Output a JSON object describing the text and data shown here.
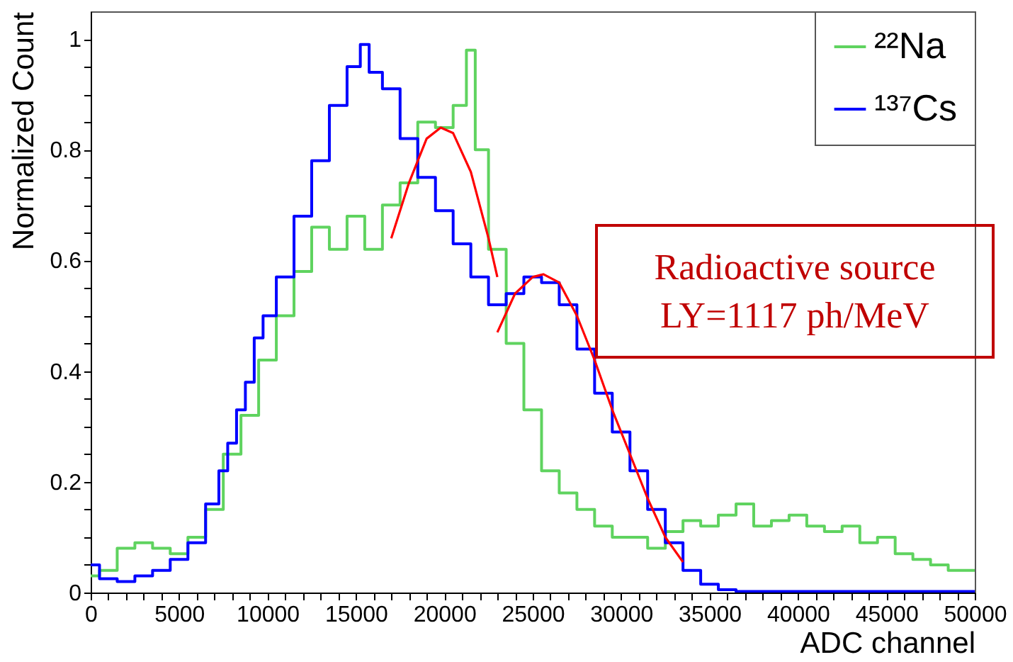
{
  "chart_data": {
    "type": "step",
    "xlabel": "ADC channel",
    "ylabel": "Normalized Count",
    "xlim": [
      0,
      50000
    ],
    "ylim": [
      0,
      1.05
    ],
    "xticks": [
      0,
      {
        "value": 1000,
        "label": null
      },
      {
        "value": 2000,
        "label": null
      },
      {
        "value": 3000,
        "label": null
      },
      {
        "value": 4000,
        "label": null
      },
      5000,
      {
        "value": 6000,
        "label": null
      },
      {
        "value": 7000,
        "label": null
      },
      {
        "value": 8000,
        "label": null
      },
      {
        "value": 9000,
        "label": null
      },
      10000,
      {
        "value": 11000,
        "label": null
      },
      {
        "value": 12000,
        "label": null
      },
      {
        "value": 13000,
        "label": null
      },
      {
        "value": 14000,
        "label": null
      },
      15000,
      {
        "value": 16000,
        "label": null
      },
      {
        "value": 17000,
        "label": null
      },
      {
        "value": 18000,
        "label": null
      },
      {
        "value": 19000,
        "label": null
      },
      20000,
      {
        "value": 21000,
        "label": null
      },
      {
        "value": 22000,
        "label": null
      },
      {
        "value": 23000,
        "label": null
      },
      {
        "value": 24000,
        "label": null
      },
      25000,
      {
        "value": 26000,
        "label": null
      },
      {
        "value": 27000,
        "label": null
      },
      {
        "value": 28000,
        "label": null
      },
      {
        "value": 29000,
        "label": null
      },
      30000,
      {
        "value": 31000,
        "label": null
      },
      {
        "value": 32000,
        "label": null
      },
      {
        "value": 33000,
        "label": null
      },
      {
        "value": 34000,
        "label": null
      },
      35000,
      {
        "value": 36000,
        "label": null
      },
      {
        "value": 37000,
        "label": null
      },
      {
        "value": 38000,
        "label": null
      },
      {
        "value": 39000,
        "label": null
      },
      40000,
      {
        "value": 41000,
        "label": null
      },
      {
        "value": 42000,
        "label": null
      },
      {
        "value": 43000,
        "label": null
      },
      {
        "value": 44000,
        "label": null
      },
      45000,
      {
        "value": 46000,
        "label": null
      },
      {
        "value": 47000,
        "label": null
      },
      {
        "value": 48000,
        "label": null
      },
      {
        "value": 49000,
        "label": null
      },
      50000
    ],
    "yticks": [
      0,
      {
        "value": 0.05,
        "label": null
      },
      {
        "value": 0.1,
        "label": null
      },
      {
        "value": 0.15,
        "label": null
      },
      0.2,
      {
        "value": 0.25,
        "label": null
      },
      {
        "value": 0.3,
        "label": null
      },
      {
        "value": 0.35,
        "label": null
      },
      0.4,
      {
        "value": 0.45,
        "label": null
      },
      {
        "value": 0.5,
        "label": null
      },
      {
        "value": 0.55,
        "label": null
      },
      0.6,
      {
        "value": 0.65,
        "label": null
      },
      {
        "value": 0.7,
        "label": null
      },
      {
        "value": 0.75,
        "label": null
      },
      0.8,
      {
        "value": 0.85,
        "label": null
      },
      {
        "value": 0.9,
        "label": null
      },
      {
        "value": 0.95,
        "label": null
      },
      1
    ],
    "grid": false,
    "legend": "top right",
    "marker": "none",
    "annotations": [
      "Radioactive source",
      "LY=1117 ph/MeV"
    ],
    "series": [
      {
        "name": "²²Na",
        "color": "#5fd35f",
        "x": [
          0,
          1000,
          2000,
          3000,
          4000,
          5000,
          6000,
          7000,
          8000,
          9000,
          10000,
          11000,
          12000,
          13000,
          14000,
          15000,
          16000,
          17000,
          18000,
          19000,
          20000,
          21000,
          21500,
          22000,
          23000,
          24000,
          25000,
          26000,
          27000,
          28000,
          29000,
          30000,
          31000,
          32000,
          33000,
          34000,
          35000,
          36000,
          37000,
          38000,
          39000,
          40000,
          41000,
          42000,
          43000,
          44000,
          45000,
          46000,
          47000,
          48000,
          49000,
          50000
        ],
        "values": [
          0.03,
          0.04,
          0.08,
          0.09,
          0.08,
          0.07,
          0.1,
          0.15,
          0.25,
          0.32,
          0.42,
          0.5,
          0.58,
          0.66,
          0.62,
          0.68,
          0.62,
          0.7,
          0.74,
          0.85,
          0.84,
          0.88,
          0.98,
          0.8,
          0.62,
          0.45,
          0.33,
          0.22,
          0.18,
          0.15,
          0.12,
          0.1,
          0.1,
          0.08,
          0.11,
          0.13,
          0.12,
          0.14,
          0.16,
          0.12,
          0.13,
          0.14,
          0.12,
          0.11,
          0.12,
          0.09,
          0.1,
          0.07,
          0.06,
          0.05,
          0.04,
          0.04
        ]
      },
      {
        "name": "¹³⁷Cs",
        "color": "#0000ff",
        "x": [
          0,
          1000,
          2000,
          3000,
          4000,
          5000,
          6000,
          7000,
          7500,
          8000,
          8500,
          9000,
          9500,
          10000,
          11000,
          12000,
          13000,
          14000,
          15000,
          15500,
          16000,
          17000,
          18000,
          19000,
          20000,
          21000,
          22000,
          23000,
          24000,
          25000,
          26000,
          27000,
          28000,
          29000,
          30000,
          31000,
          32000,
          33000,
          34000,
          35000,
          36000,
          37000,
          40000,
          45000,
          50000
        ],
        "values": [
          0.05,
          0.025,
          0.02,
          0.03,
          0.04,
          0.06,
          0.09,
          0.16,
          0.22,
          0.27,
          0.33,
          0.38,
          0.46,
          0.5,
          0.57,
          0.68,
          0.78,
          0.88,
          0.95,
          0.99,
          0.94,
          0.91,
          0.82,
          0.75,
          0.69,
          0.63,
          0.57,
          0.52,
          0.54,
          0.57,
          0.56,
          0.52,
          0.44,
          0.36,
          0.29,
          0.22,
          0.15,
          0.09,
          0.04,
          0.015,
          0.005,
          0.002,
          0.002,
          0.002,
          0.002
        ]
      },
      {
        "type": "line",
        "color": "#ff0000",
        "x": [
          17000,
          18000,
          19000,
          19800,
          20500,
          21500,
          22500,
          23000
        ],
        "values": [
          0.64,
          0.74,
          0.82,
          0.84,
          0.83,
          0.76,
          0.64,
          0.57
        ]
      },
      {
        "type": "line",
        "color": "#ff0000",
        "x": [
          23000,
          24000,
          25000,
          25600,
          26500,
          27500,
          28500,
          29500,
          30500,
          31500,
          32500,
          33500
        ],
        "values": [
          0.47,
          0.54,
          0.57,
          0.575,
          0.56,
          0.5,
          0.42,
          0.33,
          0.25,
          0.17,
          0.1,
          0.055
        ]
      }
    ]
  }
}
